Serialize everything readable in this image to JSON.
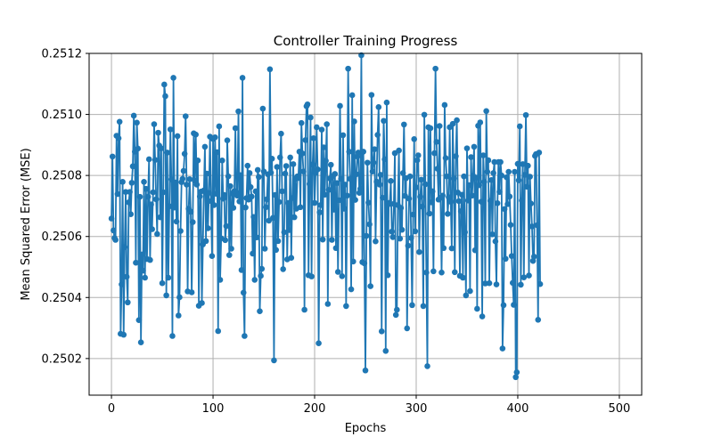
{
  "chart_data": {
    "type": "line",
    "title": "Controller Training Progress",
    "xlabel": "Epochs",
    "ylabel": "Mean Squared Error (MSE)",
    "xlim": [
      -22,
      522
    ],
    "ylim": [
      0.25008,
      0.2512
    ],
    "xticks": [
      0,
      100,
      200,
      300,
      400,
      500
    ],
    "xtick_labels": [
      "0",
      "100",
      "200",
      "300",
      "400",
      "500"
    ],
    "yticks": [
      0.2502,
      0.2504,
      0.2506,
      0.2508,
      0.251,
      0.2512
    ],
    "ytick_labels": [
      "0.2502",
      "0.2504",
      "0.2506",
      "0.2508",
      "0.2510",
      "0.2512"
    ],
    "grid": true,
    "marker": "circle",
    "color": "#1f77b4",
    "x_start": 0,
    "x_step": 1,
    "series": [
      {
        "values": [
          0.250659,
          0.250862,
          0.25062,
          0.250595,
          0.250589,
          0.25093,
          0.250739,
          0.250922,
          0.250976,
          0.250281,
          0.250443,
          0.250779,
          0.250278,
          0.250565,
          0.250746,
          0.250468,
          0.250384,
          0.250712,
          0.250746,
          0.250673,
          0.250776,
          0.25083,
          0.250996,
          0.250878,
          0.250514,
          0.250973,
          0.250888,
          0.250326,
          0.25073,
          0.250253,
          0.250541,
          0.250488,
          0.250779,
          0.250465,
          0.250756,
          0.250526,
          0.25073,
          0.250853,
          0.250523,
          0.250705,
          0.250624,
          0.250745,
          0.250968,
          0.250851,
          0.250722,
          0.250608,
          0.25094,
          0.250898,
          0.250663,
          0.250889,
          0.250447,
          0.250745,
          0.251098,
          0.25106,
          0.250407,
          0.250875,
          0.250465,
          0.250699,
          0.250951,
          0.250787,
          0.250274,
          0.25112,
          0.250695,
          0.250777,
          0.250649,
          0.250929,
          0.250341,
          0.250401,
          0.250618,
          0.250778,
          0.250789,
          0.250815,
          0.250871,
          0.250994,
          0.25077,
          0.25042,
          0.250691,
          0.250788,
          0.250681,
          0.250417,
          0.250647,
          0.250938,
          0.250783,
          0.250934,
          0.25077,
          0.250849,
          0.250373,
          0.250731,
          0.250747,
          0.250382,
          0.250574,
          0.250751,
          0.250894,
          0.250585,
          0.250806,
          0.250627,
          0.250743,
          0.250927,
          0.250716,
          0.250536,
          0.25092,
          0.250703,
          0.250925,
          0.25074,
          0.250876,
          0.25029,
          0.250961,
          0.250458,
          0.250594,
          0.250849,
          0.250724,
          0.250736,
          0.250588,
          0.250634,
          0.250915,
          0.250797,
          0.250539,
          0.250765,
          0.25056,
          0.250741,
          0.250694,
          0.250749,
          0.250955,
          0.250745,
          0.250734,
          0.25101,
          0.250715,
          0.250801,
          0.25049,
          0.25112,
          0.250416,
          0.250274,
          0.250695,
          0.250726,
          0.250832,
          0.250721,
          0.250808,
          0.250762,
          0.250731,
          0.250544,
          0.250664,
          0.250458,
          0.250748,
          0.250597,
          0.250818,
          0.250795,
          0.250355,
          0.250471,
          0.250494,
          0.251019,
          0.250813,
          0.25056,
          0.250696,
          0.250722,
          0.250804,
          0.250652,
          0.251148,
          0.250809,
          0.250855,
          0.250661,
          0.250194,
          0.250736,
          0.250556,
          0.250828,
          0.250585,
          0.250713,
          0.250859,
          0.250937,
          0.250748,
          0.250493,
          0.250614,
          0.250806,
          0.250831,
          0.250525,
          0.25071,
          0.250621,
          0.250859,
          0.25053,
          0.250726,
          0.250837,
          0.250663,
          0.250789,
          0.250691,
          0.250797,
          0.250792,
          0.250878,
          0.250696,
          0.250972,
          0.250872,
          0.250813,
          0.25036,
          0.250916,
          0.251027,
          0.251033,
          0.250473,
          0.250772,
          0.25099,
          0.250469,
          0.250836,
          0.250922,
          0.25071,
          0.250809,
          0.250958,
          0.25082,
          0.25025,
          0.250679,
          0.250703,
          0.25095,
          0.25059,
          0.250892,
          0.250737,
          0.250848,
          0.250968,
          0.250379,
          0.250753,
          0.25079,
          0.250835,
          0.250589,
          0.250798,
          0.250688,
          0.250805,
          0.250562,
          0.250775,
          0.250484,
          0.250719,
          0.251028,
          0.250789,
          0.25047,
          0.250932,
          0.250691,
          0.25077,
          0.250372,
          0.250734,
          0.25115,
          0.250878,
          0.250789,
          0.250427,
          0.251063,
          0.250518,
          0.250977,
          0.25072,
          0.250804,
          0.250862,
          0.250875,
          0.250743,
          0.250756,
          0.251194,
          0.250516,
          0.250878,
          0.250512,
          0.250161,
          0.250602,
          0.250842,
          0.250711,
          0.25064,
          0.250437,
          0.251064,
          0.250813,
          0.250842,
          0.250886,
          0.250584,
          0.25078,
          0.250933,
          0.251024,
          0.25077,
          0.250802,
          0.250289,
          0.250727,
          0.250979,
          0.250853,
          0.250225,
          0.251039,
          0.250473,
          0.25071,
          0.250707,
          0.250782,
          0.250616,
          0.250598,
          0.250707,
          0.250873,
          0.250343,
          0.25036,
          0.250703,
          0.250882,
          0.250593,
          0.250694,
          0.250622,
          0.250808,
          0.250967,
          0.250733,
          0.250791,
          0.250299,
          0.25057,
          0.250724,
          0.250797,
          0.250595,
          0.250375,
          0.250672,
          0.250919,
          0.250617,
          0.250761,
          0.25085,
          0.250866,
          0.250549,
          0.25073,
          0.250786,
          0.250698,
          0.250372,
          0.250999,
          0.250771,
          0.250482,
          0.250175,
          0.250958,
          0.250675,
          0.250955,
          0.250712,
          0.250748,
          0.250486,
          0.250873,
          0.25115,
          0.25091,
          0.250822,
          0.250721,
          0.250962,
          0.250727,
          0.250482,
          0.250734,
          0.250562,
          0.251031,
          0.250857,
          0.250797,
          0.250674,
          0.250729,
          0.250958,
          0.250714,
          0.250561,
          0.250969,
          0.25079,
          0.250483,
          0.250863,
          0.250981,
          0.250744,
          0.250716,
          0.250471,
          0.250683,
          0.250737,
          0.250465,
          0.250797,
          0.250614,
          0.250407,
          0.250889,
          0.250718,
          0.250768,
          0.250421,
          0.25086,
          0.250734,
          0.250799,
          0.250894,
          0.250555,
          0.250793,
          0.250363,
          0.250963,
          0.250768,
          0.250974,
          0.250714,
          0.250338,
          0.250866,
          0.250779,
          0.250446,
          0.251011,
          0.250812,
          0.25085,
          0.250447,
          0.250717,
          0.250785,
          0.250607,
          0.250808,
          0.250844,
          0.250584,
          0.250443,
          0.250709,
          0.250844,
          0.250746,
          0.250844,
          0.2508,
          0.250233,
          0.250375,
          0.25069,
          0.250527,
          0.250794,
          0.250706,
          0.250812,
          0.250731,
          0.250638,
          0.250536,
          0.250448,
          0.250376,
          0.250812,
          0.250139,
          0.250155,
          0.250838,
          0.250784,
          0.250961,
          0.250442,
          0.250718,
          0.250837,
          0.250466,
          0.250802,
          0.250998,
          0.250763,
          0.250832,
          0.250472,
          0.250796,
          0.250708,
          0.250633,
          0.25052,
          0.250534,
          0.250864,
          0.25087,
          0.250637,
          0.250327,
          0.250875,
          0.250444
        ]
      }
    ]
  }
}
